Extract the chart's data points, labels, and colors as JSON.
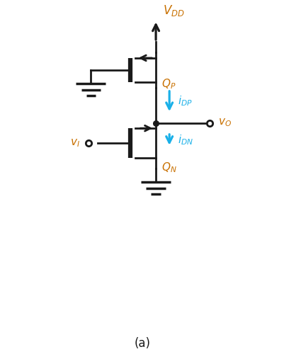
{
  "bg_color": "#ffffff",
  "line_color": "#1a1a1a",
  "cyan_color": "#1ab0e8",
  "orange_color": "#c87000",
  "fig_width": 4.02,
  "fig_height": 5.07,
  "label_a": "(a)",
  "vdd_label": "$V_{DD}$",
  "qp_label": "$Q_P$",
  "qn_label": "$Q_N$",
  "idp_label": "$i_{DP}$",
  "idn_label": "$i_{DN}$",
  "vo_label": "$v_O$",
  "vi_label": "$v_I$",
  "x_mid": 5.5,
  "xlim": [
    0,
    10
  ],
  "ylim": [
    0,
    13
  ]
}
